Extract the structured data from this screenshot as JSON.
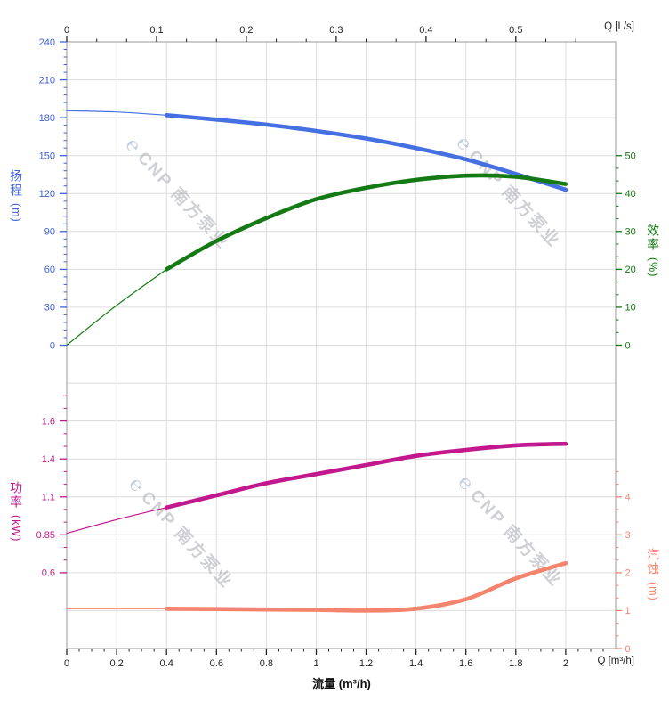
{
  "watermark": {
    "logo_glyph": "℮",
    "text": "CNP 南方泵业"
  },
  "axes": {
    "top": {
      "unit_label": "Q [L/s]",
      "ticks": [
        "0",
        "0.1",
        "0.2",
        "0.3",
        "0.4",
        "0.5"
      ],
      "color": "#222222"
    },
    "bottom": {
      "unit_label": "Q [m³/h]",
      "axis_title": "流量 (m³/h)",
      "ticks": [
        "0",
        "0.2",
        "0.4",
        "0.6",
        "0.8",
        "1",
        "1.2",
        "1.4",
        "1.6",
        "1.8",
        "2"
      ],
      "color": "#222222"
    },
    "head": {
      "title_cn": "扬程",
      "unit": "(m)",
      "ticks": [
        "240",
        "210",
        "180",
        "150",
        "120",
        "90",
        "60",
        "30",
        "0"
      ],
      "color": "#3f62d8"
    },
    "efficiency": {
      "title_cn": "效率",
      "unit": "(%)",
      "ticks": [
        "50",
        "40",
        "30",
        "20",
        "10",
        "0"
      ],
      "color": "#147a14"
    },
    "power": {
      "title_cn": "功率",
      "unit": "(kW)",
      "ticks": [
        "1.6",
        "1.4",
        "1.1",
        "0.85",
        "0.6"
      ],
      "color": "#c2188e"
    },
    "npsh": {
      "title_cn": "汽蚀",
      "unit": "(m)",
      "ticks": [
        "4",
        "3",
        "2",
        "1",
        "0"
      ],
      "color": "#f5846e"
    }
  },
  "grid": {
    "color": "#dcdcdc",
    "frame_color": "#a9a9a9"
  },
  "chart_data": {
    "type": "line",
    "x_m3h": [
      0,
      0.2,
      0.4,
      0.6,
      0.8,
      1,
      1.2,
      1.4,
      1.6,
      1.8,
      2
    ],
    "rated_range_start": 0.4,
    "x_axis_bottom": {
      "unit": "m³/h",
      "range": [
        0,
        2.2
      ],
      "major_step": 0.2,
      "minor_step": 0.05
    },
    "x_axis_top": {
      "unit": "L/s",
      "range": [
        0,
        0.61
      ],
      "major_step": 0.1
    },
    "y_axes": {
      "head": {
        "labeled_range": [
          0,
          240
        ],
        "major_step": 30
      },
      "efficiency": {
        "labeled_range": [
          0,
          50
        ],
        "major_step": 10
      },
      "power": {
        "labeled_range": [
          0.6,
          1.6
        ],
        "tick_labels": [
          "1.6",
          "1.4",
          "1.1",
          "0.85",
          "0.6"
        ]
      },
      "npsh": {
        "labeled_range": [
          0,
          4
        ],
        "major_step": 1
      }
    },
    "series": [
      {
        "id": "head",
        "label": "扬程",
        "unit": "m",
        "color": "#4470e2",
        "values": [
          185.5,
          184.5,
          182,
          178.5,
          174.5,
          169.5,
          163.5,
          156,
          147,
          135.5,
          123
        ]
      },
      {
        "id": "efficiency",
        "label": "效率",
        "unit": "%",
        "color": "#147a14",
        "values": [
          0,
          10.5,
          20,
          27.5,
          33.5,
          38.5,
          41.5,
          43.6,
          44.7,
          44.4,
          42.5
        ]
      },
      {
        "id": "power",
        "label": "功率",
        "unit": "kW",
        "color": "#c2188e",
        "values": [
          0.86,
          0.95,
          1.03,
          1.11,
          1.19,
          1.25,
          1.31,
          1.37,
          1.41,
          1.44,
          1.45
        ]
      },
      {
        "id": "npsh",
        "label": "汽蚀",
        "unit": "m",
        "color": "#f5846e",
        "values": [
          1.05,
          1.05,
          1.05,
          1.04,
          1.03,
          1.02,
          1.0,
          1.05,
          1.3,
          1.85,
          2.25
        ]
      }
    ]
  }
}
